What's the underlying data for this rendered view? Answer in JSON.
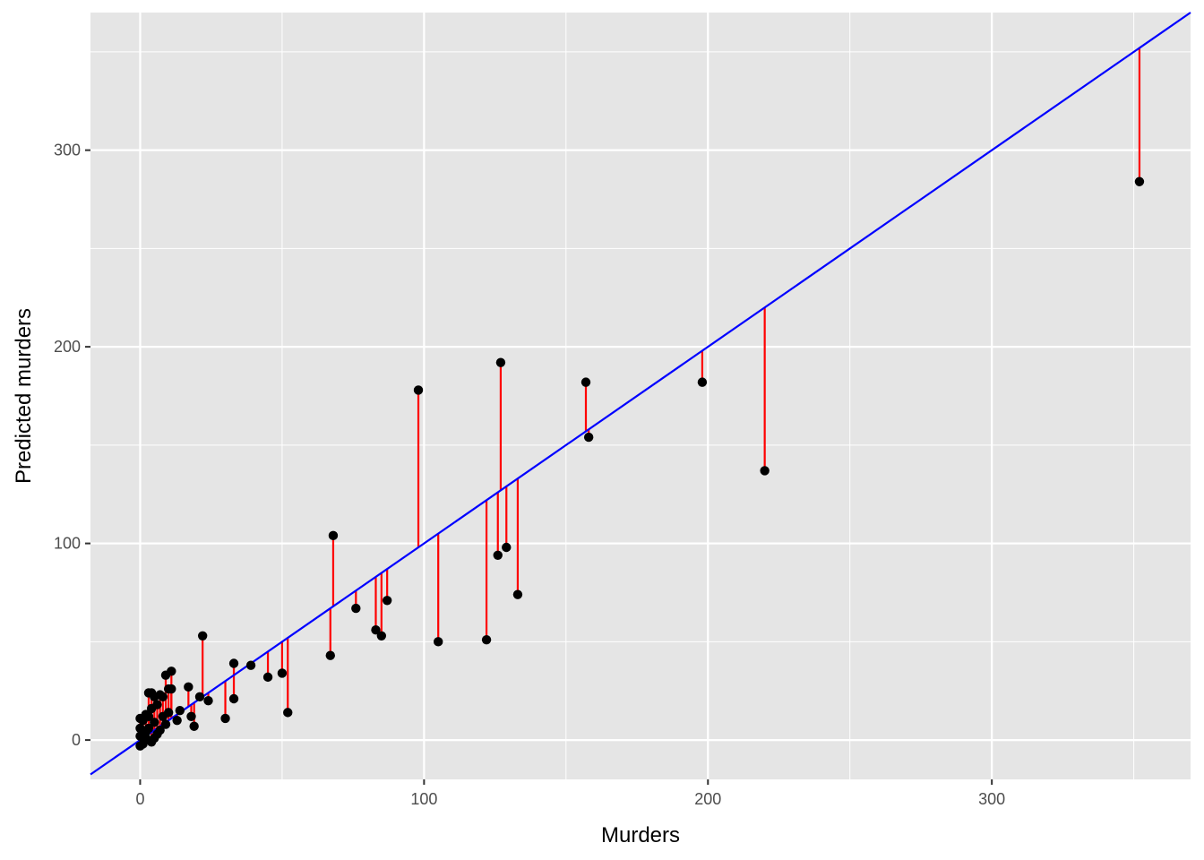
{
  "chart_data": {
    "type": "scatter",
    "title": "",
    "xlabel": "Murders",
    "ylabel": "Predicted murders",
    "xlim": [
      -17.5,
      370
    ],
    "ylim": [
      -20,
      370
    ],
    "x_ticks": [
      0,
      100,
      200,
      300
    ],
    "y_ticks": [
      0,
      100,
      200,
      300
    ],
    "grid": true,
    "legend": "none",
    "colors": {
      "panel_background": "#e5e5e5",
      "grid": "#ffffff",
      "points": "#000000",
      "residual_segments": "#ff0000",
      "reference_line": "#0000ff",
      "tick_label": "#4d4d4d",
      "axis_title": "#000000"
    },
    "reference_line": {
      "label": "",
      "intercept": 0,
      "slope": 1
    },
    "points": [
      {
        "x": 352,
        "y": 284
      },
      {
        "x": 220,
        "y": 137
      },
      {
        "x": 198,
        "y": 182
      },
      {
        "x": 158,
        "y": 154
      },
      {
        "x": 157,
        "y": 182
      },
      {
        "x": 133,
        "y": 74
      },
      {
        "x": 129,
        "y": 98
      },
      {
        "x": 127,
        "y": 192
      },
      {
        "x": 126,
        "y": 94
      },
      {
        "x": 122,
        "y": 51
      },
      {
        "x": 105,
        "y": 50
      },
      {
        "x": 98,
        "y": 178
      },
      {
        "x": 87,
        "y": 71
      },
      {
        "x": 85,
        "y": 53
      },
      {
        "x": 83,
        "y": 56
      },
      {
        "x": 76,
        "y": 67
      },
      {
        "x": 68,
        "y": 104
      },
      {
        "x": 67,
        "y": 43
      },
      {
        "x": 52,
        "y": 14
      },
      {
        "x": 50,
        "y": 34
      },
      {
        "x": 45,
        "y": 32
      },
      {
        "x": 39,
        "y": 38
      },
      {
        "x": 33,
        "y": 39
      },
      {
        "x": 33,
        "y": 21
      },
      {
        "x": 30,
        "y": 11
      },
      {
        "x": 24,
        "y": 20
      },
      {
        "x": 22,
        "y": 53
      },
      {
        "x": 21,
        "y": 22
      },
      {
        "x": 19,
        "y": 7
      },
      {
        "x": 18,
        "y": 12
      },
      {
        "x": 17,
        "y": 27
      },
      {
        "x": 14,
        "y": 15
      },
      {
        "x": 13,
        "y": 10
      },
      {
        "x": 11,
        "y": 35
      },
      {
        "x": 11,
        "y": 26
      },
      {
        "x": 10,
        "y": 14
      },
      {
        "x": 10,
        "y": 26
      },
      {
        "x": 9,
        "y": 33
      },
      {
        "x": 9,
        "y": 8
      },
      {
        "x": 8,
        "y": 22
      },
      {
        "x": 8,
        "y": 12
      },
      {
        "x": 7,
        "y": 23
      },
      {
        "x": 7,
        "y": 5
      },
      {
        "x": 6,
        "y": 18
      },
      {
        "x": 6,
        "y": 3
      },
      {
        "x": 5,
        "y": 22
      },
      {
        "x": 5,
        "y": 9
      },
      {
        "x": 5,
        "y": 1
      },
      {
        "x": 4,
        "y": 16
      },
      {
        "x": 4,
        "y": 24
      },
      {
        "x": 4,
        "y": -1
      },
      {
        "x": 3,
        "y": 24
      },
      {
        "x": 3,
        "y": 12
      },
      {
        "x": 3,
        "y": 6
      },
      {
        "x": 2,
        "y": 13
      },
      {
        "x": 2,
        "y": 4
      },
      {
        "x": 2,
        "y": 1
      },
      {
        "x": 1,
        "y": 10
      },
      {
        "x": 1,
        "y": 3
      },
      {
        "x": 1,
        "y": -2
      },
      {
        "x": 0,
        "y": 11
      },
      {
        "x": 0,
        "y": 6
      },
      {
        "x": 0,
        "y": 2
      },
      {
        "x": 0,
        "y": -3
      }
    ]
  }
}
